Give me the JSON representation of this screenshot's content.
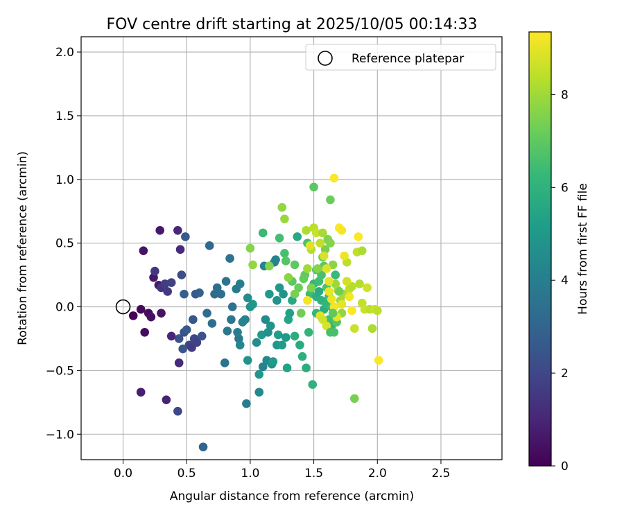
{
  "chart_data": {
    "type": "scatter",
    "title": "FOV centre drift starting at 2025/10/05 00:14:33",
    "xlabel": "Angular distance from reference (arcmin)",
    "ylabel": "Rotation from reference (arcmin)",
    "xlim": [
      -0.33,
      2.98
    ],
    "ylim": [
      -1.2,
      2.12
    ],
    "xticks": [
      0.0,
      0.5,
      1.0,
      1.5,
      2.0,
      2.5
    ],
    "xtick_labels": [
      "0.0",
      "0.5",
      "1.0",
      "1.5",
      "2.0",
      "2.5"
    ],
    "yticks": [
      -1.0,
      -0.5,
      0.0,
      0.5,
      1.0,
      1.5,
      2.0
    ],
    "ytick_labels": [
      "−1.0",
      "−0.5",
      "0.0",
      "0.5",
      "1.0",
      "1.5",
      "2.0"
    ],
    "grid": true,
    "legend": {
      "position": "top-right",
      "label": "Reference platepar"
    },
    "reference_point": {
      "x": 0.0,
      "y": 0.0
    },
    "colorbar": {
      "label": "Hours from first FF file",
      "range": [
        0,
        9.35
      ],
      "ticks": [
        0,
        2,
        4,
        6,
        8
      ],
      "tick_labels": [
        "0",
        "2",
        "4",
        "6",
        "8"
      ],
      "colormap": [
        "#440154",
        "#482878",
        "#3e4a89",
        "#31688e",
        "#26828e",
        "#1f9e89",
        "#35b779",
        "#6ece58",
        "#b5de2b",
        "#fde725"
      ]
    },
    "points": [
      [
        0.08,
        -0.07,
        0.1
      ],
      [
        0.14,
        -0.02,
        0.2
      ],
      [
        0.17,
        -0.2,
        0.3
      ],
      [
        0.2,
        -0.05,
        0.3
      ],
      [
        0.22,
        -0.08,
        0.4
      ],
      [
        0.16,
        0.44,
        0.5
      ],
      [
        0.29,
        0.6,
        0.6
      ],
      [
        0.3,
        -0.05,
        0.5
      ],
      [
        0.24,
        0.23,
        0.6
      ],
      [
        0.28,
        0.17,
        0.7
      ],
      [
        0.14,
        -0.67,
        0.8
      ],
      [
        0.34,
        -0.73,
        0.9
      ],
      [
        0.38,
        -0.23,
        1.0
      ],
      [
        0.43,
        0.6,
        1.0
      ],
      [
        0.44,
        -0.44,
        1.1
      ],
      [
        0.45,
        0.45,
        1.1
      ],
      [
        0.25,
        0.28,
        1.5
      ],
      [
        0.3,
        0.15,
        1.4
      ],
      [
        0.33,
        0.18,
        1.7
      ],
      [
        0.35,
        0.12,
        1.6
      ],
      [
        0.38,
        0.19,
        1.8
      ],
      [
        0.43,
        -0.82,
        2.0
      ],
      [
        0.46,
        0.25,
        2.2
      ],
      [
        0.48,
        -0.2,
        2.3
      ],
      [
        0.5,
        -0.18,
        2.6
      ],
      [
        0.52,
        -0.3,
        1.9
      ],
      [
        0.54,
        -0.32,
        1.6
      ],
      [
        0.56,
        -0.25,
        2.0
      ],
      [
        0.58,
        -0.28,
        1.8
      ],
      [
        0.62,
        -0.23,
        2.4
      ],
      [
        0.48,
        0.1,
        2.8
      ],
      [
        0.44,
        -0.25,
        2.4
      ],
      [
        0.47,
        -0.33,
        2.5
      ],
      [
        0.49,
        0.55,
        2.6
      ],
      [
        0.55,
        -0.1,
        2.5
      ],
      [
        0.57,
        0.1,
        2.6
      ],
      [
        0.6,
        0.11,
        2.9
      ],
      [
        0.63,
        -1.1,
        3.0
      ],
      [
        0.66,
        -0.05,
        3.3
      ],
      [
        0.68,
        0.48,
        3.1
      ],
      [
        0.7,
        -0.13,
        3.4
      ],
      [
        0.72,
        0.1,
        3.2
      ],
      [
        0.74,
        0.15,
        3.3
      ],
      [
        0.77,
        0.1,
        3.4
      ],
      [
        0.8,
        -0.44,
        3.6
      ],
      [
        0.81,
        0.2,
        3.5
      ],
      [
        0.82,
        -0.19,
        3.7
      ],
      [
        0.84,
        0.38,
        3.5
      ],
      [
        0.86,
        0.0,
        3.6
      ],
      [
        0.85,
        -0.1,
        3.7
      ],
      [
        0.89,
        0.14,
        3.8
      ],
      [
        0.91,
        -0.25,
        3.8
      ],
      [
        0.92,
        0.18,
        4.0
      ],
      [
        0.94,
        -0.12,
        4.1
      ],
      [
        0.96,
        -0.1,
        4.2
      ],
      [
        0.97,
        -0.76,
        3.9
      ],
      [
        0.9,
        -0.2,
        4.0
      ],
      [
        0.92,
        -0.3,
        4.3
      ],
      [
        0.98,
        0.07,
        4.6
      ],
      [
        0.98,
        -0.42,
        4.8
      ],
      [
        1.0,
        0.0,
        4.8
      ],
      [
        1.02,
        0.02,
        5.0
      ],
      [
        1.05,
        -0.28,
        4.6
      ],
      [
        1.07,
        -0.67,
        4.4
      ],
      [
        1.07,
        -0.53,
        4.9
      ],
      [
        1.09,
        -0.22,
        5.0
      ],
      [
        1.1,
        -0.47,
        4.2
      ],
      [
        1.11,
        0.32,
        4.3
      ],
      [
        1.12,
        -0.1,
        4.5
      ],
      [
        1.13,
        -0.42,
        4.4
      ],
      [
        1.14,
        -0.2,
        4.7
      ],
      [
        1.15,
        0.1,
        5.0
      ],
      [
        1.16,
        -0.15,
        4.8
      ],
      [
        1.17,
        -0.45,
        4.6
      ],
      [
        1.18,
        -0.43,
        5.1
      ],
      [
        1.19,
        0.35,
        4.1
      ],
      [
        1.2,
        0.37,
        4.2
      ],
      [
        1.21,
        0.05,
        4.7
      ],
      [
        1.21,
        -0.3,
        4.9
      ],
      [
        1.22,
        -0.22,
        5.2
      ],
      [
        1.23,
        0.15,
        5.0
      ],
      [
        1.25,
        -0.3,
        5.1
      ],
      [
        1.26,
        0.1,
        4.8
      ],
      [
        1.28,
        -0.24,
        5.0
      ],
      [
        1.29,
        -0.48,
        5.4
      ],
      [
        1.3,
        -0.1,
        5.5
      ],
      [
        1.31,
        -0.05,
        5.3
      ],
      [
        1.33,
        0.05,
        5.6
      ],
      [
        1.35,
        -0.23,
        5.8
      ],
      [
        1.37,
        0.55,
        5.6
      ],
      [
        1.39,
        -0.3,
        5.7
      ],
      [
        1.41,
        -0.39,
        5.9
      ],
      [
        1.44,
        -0.48,
        5.8
      ],
      [
        1.46,
        -0.2,
        6.1
      ],
      [
        1.49,
        -0.61,
        6.0
      ],
      [
        1.1,
        0.58,
        6.3
      ],
      [
        1.23,
        0.54,
        6.5
      ],
      [
        1.27,
        0.42,
        6.6
      ],
      [
        1.28,
        0.36,
        6.8
      ],
      [
        1.33,
        0.2,
        6.9
      ],
      [
        1.35,
        0.33,
        7.0
      ],
      [
        1.38,
        0.15,
        7.2
      ],
      [
        1.4,
        -0.05,
        7.3
      ],
      [
        1.43,
        0.25,
        7.0
      ],
      [
        1.45,
        0.5,
        6.6
      ],
      [
        1.47,
        0.1,
        6.4
      ],
      [
        1.5,
        0.18,
        6.1
      ],
      [
        1.52,
        -0.05,
        6.2
      ],
      [
        1.54,
        0.2,
        6.4
      ],
      [
        1.56,
        0.25,
        6.6
      ],
      [
        1.58,
        0.32,
        6.9
      ],
      [
        1.6,
        0.15,
        6.7
      ],
      [
        1.62,
        -0.1,
        6.5
      ],
      [
        1.64,
        -0.15,
        6.2
      ],
      [
        1.67,
        0.25,
        6.3
      ],
      [
        1.5,
        0.94,
        6.9
      ],
      [
        1.52,
        0.08,
        5.9
      ],
      [
        1.54,
        0.12,
        5.7
      ],
      [
        1.56,
        0.05,
        6.0
      ],
      [
        1.58,
        -0.02,
        5.8
      ],
      [
        1.6,
        0.02,
        6.1
      ],
      [
        1.62,
        0.08,
        6.3
      ],
      [
        1.64,
        0.0,
        6.4
      ],
      [
        1.66,
        -0.2,
        6.6
      ],
      [
        1.68,
        -0.12,
        6.8
      ],
      [
        1.57,
        0.39,
        7.2
      ],
      [
        1.59,
        0.45,
        7.4
      ],
      [
        1.61,
        0.53,
        7.5
      ],
      [
        1.63,
        0.84,
        7.2
      ],
      [
        1.63,
        0.5,
        7.6
      ],
      [
        1.65,
        0.33,
        7.7
      ],
      [
        1.67,
        0.18,
        7.9
      ],
      [
        1.69,
        0.13,
        8.1
      ],
      [
        1.71,
        0.05,
        8.0
      ],
      [
        1.72,
        -0.05,
        7.8
      ],
      [
        1.74,
        0.1,
        8.2
      ],
      [
        1.76,
        0.35,
        8.4
      ],
      [
        1.78,
        0.14,
        8.5
      ],
      [
        1.8,
        0.16,
        8.3
      ],
      [
        1.82,
        -0.72,
        7.4
      ],
      [
        1.82,
        -0.17,
        8.6
      ],
      [
        1.84,
        0.43,
        8.5
      ],
      [
        1.86,
        0.18,
        8.3
      ],
      [
        1.88,
        0.03,
        8.5
      ],
      [
        1.9,
        -0.02,
        8.6
      ],
      [
        1.92,
        0.15,
        8.7
      ],
      [
        1.94,
        -0.02,
        8.4
      ],
      [
        1.96,
        -0.17,
        8.2
      ],
      [
        1.25,
        0.78,
        7.8
      ],
      [
        1.27,
        0.69,
        7.9
      ],
      [
        1.0,
        0.46,
        7.6
      ],
      [
        1.02,
        0.33,
        7.8
      ],
      [
        1.15,
        0.32,
        7.6
      ],
      [
        1.3,
        0.23,
        7.7
      ],
      [
        1.45,
        0.3,
        8.0
      ],
      [
        1.48,
        0.45,
        8.3
      ],
      [
        1.5,
        0.62,
        8.4
      ],
      [
        1.52,
        0.58,
        8.6
      ],
      [
        1.55,
        0.5,
        8.5
      ],
      [
        1.58,
        0.4,
        8.8
      ],
      [
        1.6,
        0.3,
        8.9
      ],
      [
        1.62,
        0.2,
        9.0
      ],
      [
        1.64,
        0.06,
        9.1
      ],
      [
        1.66,
        1.01,
        9.3
      ],
      [
        1.66,
        0.0,
        9.2
      ],
      [
        1.68,
        -0.08,
        9.0
      ],
      [
        1.7,
        0.62,
        9.3
      ],
      [
        1.72,
        0.6,
        9.2
      ],
      [
        1.74,
        0.4,
        9.1
      ],
      [
        1.76,
        0.2,
        9.3
      ],
      [
        1.78,
        0.08,
        9.2
      ],
      [
        1.8,
        -0.03,
        9.3
      ],
      [
        1.85,
        0.55,
        9.3
      ],
      [
        2.01,
        -0.42,
        9.3
      ],
      [
        1.45,
        0.05,
        9.2
      ],
      [
        1.55,
        -0.07,
        8.9
      ],
      [
        1.57,
        -0.1,
        8.7
      ],
      [
        1.6,
        -0.15,
        8.8
      ],
      [
        1.62,
        0.12,
        9.1
      ],
      [
        1.72,
        0.02,
        9.0
      ],
      [
        1.44,
        0.6,
        8.2
      ],
      [
        1.47,
        0.48,
        8.9
      ],
      [
        1.57,
        0.58,
        8.1
      ],
      [
        1.76,
        0.2,
        8.7
      ],
      [
        1.88,
        0.44,
        8.2
      ],
      [
        1.48,
        0.15,
        7.5
      ],
      [
        1.52,
        0.29,
        6.8
      ],
      [
        1.35,
        0.1,
        7.4
      ],
      [
        1.42,
        0.22,
        7.1
      ],
      [
        1.53,
        0.3,
        7.6
      ],
      [
        1.98,
        -0.02,
        8.6
      ],
      [
        2.0,
        -0.03,
        8.4
      ],
      [
        1.63,
        -0.2,
        6.6
      ],
      [
        1.65,
        -0.05,
        7.0
      ],
      [
        1.7,
        0.12,
        7.3
      ]
    ]
  }
}
